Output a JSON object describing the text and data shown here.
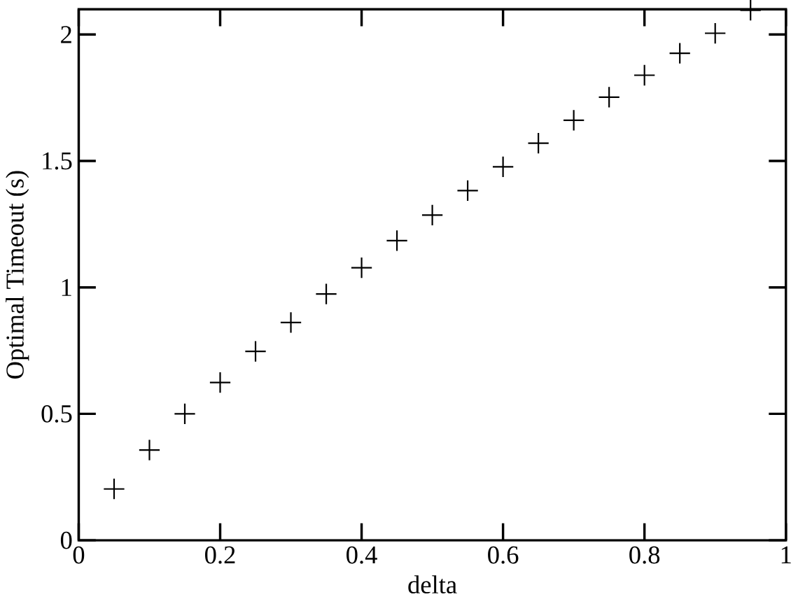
{
  "chart_data": {
    "type": "scatter",
    "xlabel": "delta",
    "ylabel": "Optimal Timeout (s)",
    "x": [
      0.05,
      0.1,
      0.15,
      0.2,
      0.25,
      0.3,
      0.35,
      0.4,
      0.45,
      0.5,
      0.55,
      0.6,
      0.65,
      0.7,
      0.75,
      0.8,
      0.85,
      0.9,
      0.95
    ],
    "values": [
      0.203,
      0.357,
      0.5,
      0.624,
      0.747,
      0.861,
      0.974,
      1.078,
      1.185,
      1.286,
      1.383,
      1.477,
      1.57,
      1.661,
      1.752,
      1.839,
      1.926,
      2.005,
      2.096
    ],
    "color": "#000000",
    "marker": "cross",
    "xlim": [
      0,
      1
    ],
    "ylim": [
      0,
      2.1
    ],
    "xticks": [
      0,
      0.2,
      0.4,
      0.6,
      0.8,
      1
    ],
    "yticks": [
      0,
      0.5,
      1,
      1.5,
      2
    ]
  }
}
